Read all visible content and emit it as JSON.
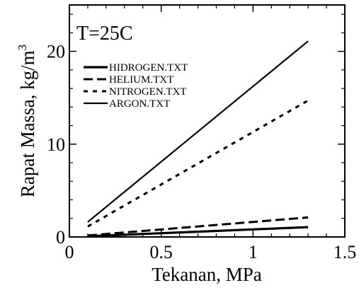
{
  "chart_data": {
    "type": "line",
    "title": "",
    "xlabel": "Tekanan, MPa",
    "ylabel": "Rapat Massa, kg/m",
    "ylabel_superscript": "3",
    "annotation": "T=25C",
    "xlim": [
      0,
      1.5
    ],
    "ylim": [
      0,
      25
    ],
    "xticks": [
      0,
      0.5,
      1,
      1.5
    ],
    "xtick_labels": [
      "0",
      "0.5",
      "1",
      "1.5"
    ],
    "yticks": [
      0,
      10,
      20
    ],
    "ytick_labels": [
      "0",
      "10",
      "20"
    ],
    "grid": false,
    "legend_position": "upper-left",
    "series": [
      {
        "name": "HIDROGEN.TXT",
        "style": "solid",
        "x": [
          0.1,
          1.3
        ],
        "values": [
          0.08,
          1.06
        ]
      },
      {
        "name": "HELIUM.TXT",
        "style": "dashed",
        "x": [
          0.1,
          1.3
        ],
        "values": [
          0.16,
          2.1
        ]
      },
      {
        "name": "NITROGEN.TXT",
        "style": "dotted",
        "x": [
          0.1,
          1.3
        ],
        "values": [
          1.13,
          14.7
        ]
      },
      {
        "name": "ARGON.TXT",
        "style": "dash-dot",
        "x": [
          0.1,
          1.3
        ],
        "values": [
          1.61,
          21.1
        ]
      }
    ]
  }
}
